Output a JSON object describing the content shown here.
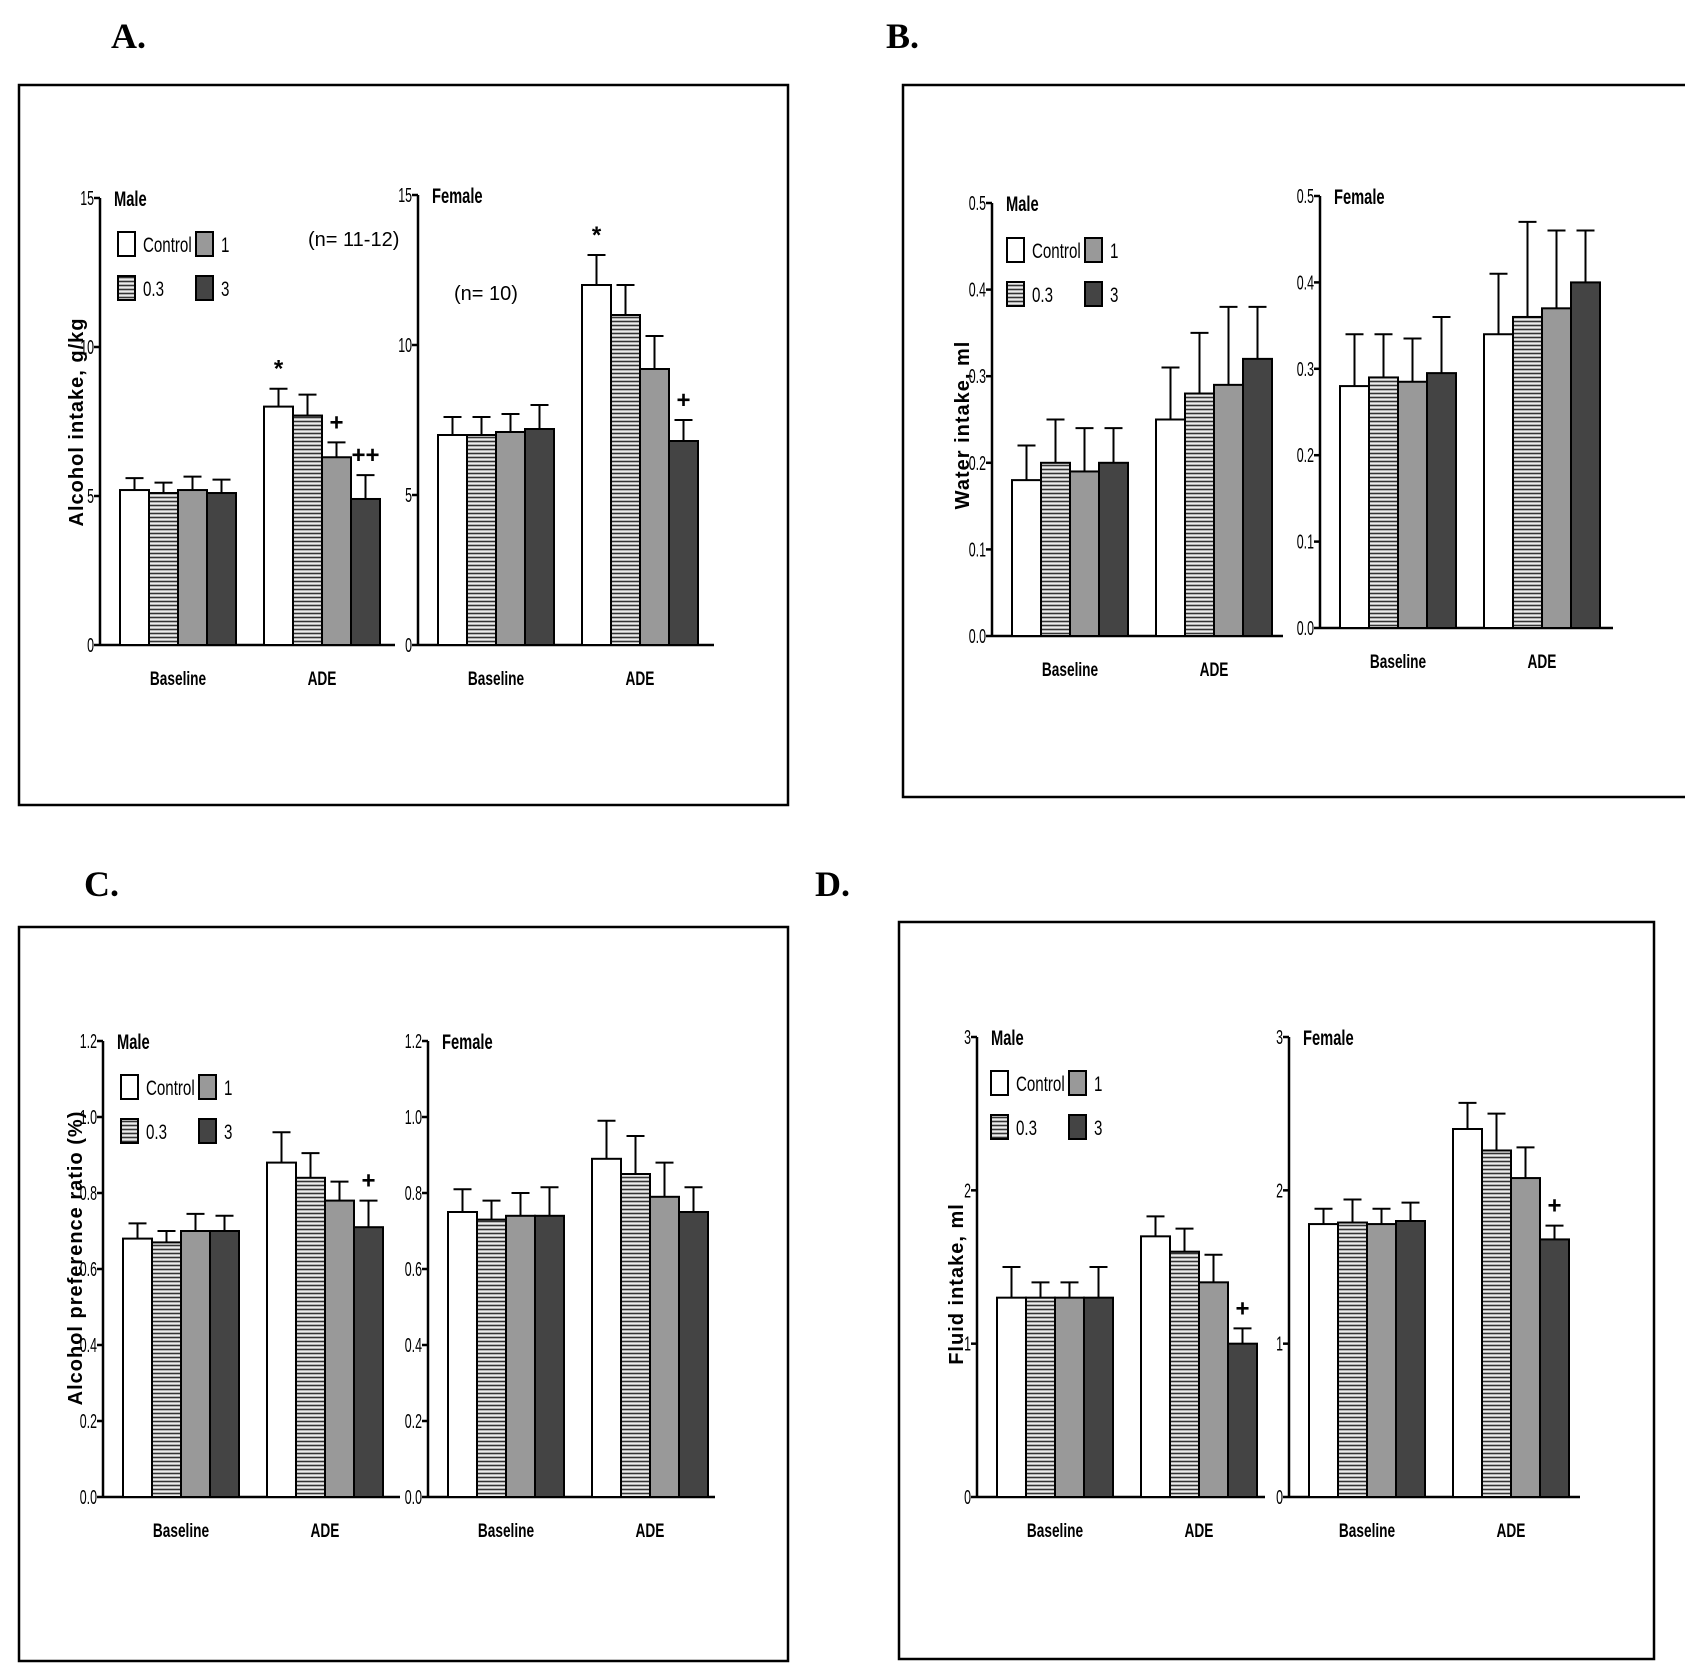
{
  "colors": {
    "control": "#ffffff",
    "dose_0_3": "#ececec",
    "dose_1": "#999999",
    "dose_3": "#444444",
    "stripe": "#333333",
    "axis": "#000000"
  },
  "legend": [
    {
      "label": "Control",
      "series": "control"
    },
    {
      "label": "1",
      "series": "dose_1"
    },
    {
      "label": "0.3",
      "series": "dose_0_3"
    },
    {
      "label": "3",
      "series": "dose_3"
    }
  ],
  "chart_data": [
    {
      "panel": "A.",
      "type": "bar",
      "ylabel": "Alcohol intake, g/kg",
      "ylim": [
        0,
        15
      ],
      "yticks": [
        0,
        5,
        10,
        15
      ],
      "ytick_labels": [
        "0",
        "5",
        "10",
        "15"
      ],
      "n_note": "(n= 11-12)",
      "n_note_female": "(n= 10)",
      "subplots": [
        {
          "title": "Male",
          "categories": [
            "Baseline",
            "ADE"
          ],
          "series": [
            {
              "name": "Control",
              "values": [
                5.2,
                8.0
              ],
              "errors": [
                0.4,
                0.6
              ],
              "annotations": [
                "",
                "*"
              ]
            },
            {
              "name": "0.3",
              "values": [
                5.1,
                7.7
              ],
              "errors": [
                0.35,
                0.7
              ],
              "annotations": [
                "",
                ""
              ]
            },
            {
              "name": "1",
              "values": [
                5.2,
                6.3
              ],
              "errors": [
                0.45,
                0.5
              ],
              "annotations": [
                "",
                "+"
              ]
            },
            {
              "name": "3",
              "values": [
                5.1,
                4.9
              ],
              "errors": [
                0.45,
                0.8
              ],
              "annotations": [
                "",
                "++"
              ]
            }
          ]
        },
        {
          "title": "Female",
          "categories": [
            "Baseline",
            "ADE"
          ],
          "series": [
            {
              "name": "Control",
              "values": [
                7.0,
                12.0
              ],
              "errors": [
                0.6,
                1.0
              ],
              "annotations": [
                "",
                "*"
              ]
            },
            {
              "name": "0.3",
              "values": [
                7.0,
                11.0
              ],
              "errors": [
                0.6,
                1.0
              ],
              "annotations": [
                "",
                ""
              ]
            },
            {
              "name": "1",
              "values": [
                7.1,
                9.2
              ],
              "errors": [
                0.6,
                1.1
              ],
              "annotations": [
                "",
                ""
              ]
            },
            {
              "name": "3",
              "values": [
                7.2,
                6.8
              ],
              "errors": [
                0.8,
                0.7
              ],
              "annotations": [
                "",
                "+"
              ]
            }
          ]
        }
      ]
    },
    {
      "panel": "B.",
      "type": "bar",
      "ylabel": "Water intake, ml",
      "ylim": [
        0,
        0.5
      ],
      "yticks": [
        0,
        0.1,
        0.2,
        0.3,
        0.4,
        0.5
      ],
      "ytick_labels": [
        "0.0",
        "0.1",
        "0.2",
        "0.3",
        "0.4",
        "0.5"
      ],
      "subplots": [
        {
          "title": "Male",
          "categories": [
            "Baseline",
            "ADE"
          ],
          "series": [
            {
              "name": "Control",
              "values": [
                0.18,
                0.25
              ],
              "errors": [
                0.04,
                0.06
              ],
              "annotations": [
                "",
                ""
              ]
            },
            {
              "name": "0.3",
              "values": [
                0.2,
                0.28
              ],
              "errors": [
                0.05,
                0.07
              ],
              "annotations": [
                "",
                ""
              ]
            },
            {
              "name": "1",
              "values": [
                0.19,
                0.29
              ],
              "errors": [
                0.05,
                0.09
              ],
              "annotations": [
                "",
                ""
              ]
            },
            {
              "name": "3",
              "values": [
                0.2,
                0.32
              ],
              "errors": [
                0.04,
                0.06
              ],
              "annotations": [
                "",
                ""
              ]
            }
          ]
        },
        {
          "title": "Female",
          "categories": [
            "Baseline",
            "ADE"
          ],
          "series": [
            {
              "name": "Control",
              "values": [
                0.28,
                0.34
              ],
              "errors": [
                0.06,
                0.07
              ],
              "annotations": [
                "",
                ""
              ]
            },
            {
              "name": "0.3",
              "values": [
                0.29,
                0.36
              ],
              "errors": [
                0.05,
                0.11
              ],
              "annotations": [
                "",
                ""
              ]
            },
            {
              "name": "1",
              "values": [
                0.285,
                0.37
              ],
              "errors": [
                0.05,
                0.09
              ],
              "annotations": [
                "",
                ""
              ]
            },
            {
              "name": "3",
              "values": [
                0.295,
                0.4
              ],
              "errors": [
                0.065,
                0.06
              ],
              "annotations": [
                "",
                ""
              ]
            }
          ]
        }
      ]
    },
    {
      "panel": "C.",
      "type": "bar",
      "ylabel": "Alcohol preference ratio (%)",
      "ylim": [
        0,
        1.2
      ],
      "yticks": [
        0,
        0.2,
        0.4,
        0.6,
        0.8,
        1.0,
        1.2
      ],
      "ytick_labels": [
        "0.0",
        "0.2",
        "0.4",
        "0.6",
        "0.8",
        "1.0",
        "1.2"
      ],
      "subplots": [
        {
          "title": "Male",
          "categories": [
            "Baseline",
            "ADE"
          ],
          "series": [
            {
              "name": "Control",
              "values": [
                0.68,
                0.88
              ],
              "errors": [
                0.04,
                0.08
              ],
              "annotations": [
                "",
                ""
              ]
            },
            {
              "name": "0.3",
              "values": [
                0.67,
                0.84
              ],
              "errors": [
                0.03,
                0.065
              ],
              "annotations": [
                "",
                ""
              ]
            },
            {
              "name": "1",
              "values": [
                0.7,
                0.78
              ],
              "errors": [
                0.045,
                0.05
              ],
              "annotations": [
                "",
                ""
              ]
            },
            {
              "name": "3",
              "values": [
                0.7,
                0.71
              ],
              "errors": [
                0.04,
                0.07
              ],
              "annotations": [
                "",
                "+"
              ]
            }
          ]
        },
        {
          "title": "Female",
          "categories": [
            "Baseline",
            "ADE"
          ],
          "series": [
            {
              "name": "Control",
              "values": [
                0.75,
                0.89
              ],
              "errors": [
                0.06,
                0.1
              ],
              "annotations": [
                "",
                ""
              ]
            },
            {
              "name": "0.3",
              "values": [
                0.73,
                0.85
              ],
              "errors": [
                0.05,
                0.1
              ],
              "annotations": [
                "",
                ""
              ]
            },
            {
              "name": "1",
              "values": [
                0.74,
                0.79
              ],
              "errors": [
                0.06,
                0.09
              ],
              "annotations": [
                "",
                ""
              ]
            },
            {
              "name": "3",
              "values": [
                0.74,
                0.75
              ],
              "errors": [
                0.075,
                0.065
              ],
              "annotations": [
                "",
                ""
              ]
            }
          ]
        }
      ]
    },
    {
      "panel": "D.",
      "type": "bar",
      "ylabel": "Fluid intake, ml",
      "ylim": [
        0,
        3
      ],
      "yticks": [
        0,
        1,
        2,
        3
      ],
      "ytick_labels": [
        "0",
        "1",
        "2",
        "3"
      ],
      "subplots": [
        {
          "title": "Male",
          "categories": [
            "Baseline",
            "ADE"
          ],
          "series": [
            {
              "name": "Control",
              "values": [
                1.3,
                1.7
              ],
              "errors": [
                0.2,
                0.13
              ],
              "annotations": [
                "",
                ""
              ]
            },
            {
              "name": "0.3",
              "values": [
                1.3,
                1.6
              ],
              "errors": [
                0.1,
                0.15
              ],
              "annotations": [
                "",
                ""
              ]
            },
            {
              "name": "1",
              "values": [
                1.3,
                1.4
              ],
              "errors": [
                0.1,
                0.18
              ],
              "annotations": [
                "",
                ""
              ]
            },
            {
              "name": "3",
              "values": [
                1.3,
                1.0
              ],
              "errors": [
                0.2,
                0.1
              ],
              "annotations": [
                "",
                "+"
              ]
            }
          ]
        },
        {
          "title": "Female",
          "categories": [
            "Baseline",
            "ADE"
          ],
          "series": [
            {
              "name": "Control",
              "values": [
                1.78,
                2.4
              ],
              "errors": [
                0.1,
                0.17
              ],
              "annotations": [
                "",
                ""
              ]
            },
            {
              "name": "0.3",
              "values": [
                1.79,
                2.26
              ],
              "errors": [
                0.15,
                0.24
              ],
              "annotations": [
                "",
                ""
              ]
            },
            {
              "name": "1",
              "values": [
                1.78,
                2.08
              ],
              "errors": [
                0.1,
                0.2
              ],
              "annotations": [
                "",
                ""
              ]
            },
            {
              "name": "3",
              "values": [
                1.8,
                1.68
              ],
              "errors": [
                0.12,
                0.09
              ],
              "annotations": [
                "",
                "+"
              ]
            }
          ]
        }
      ]
    }
  ]
}
